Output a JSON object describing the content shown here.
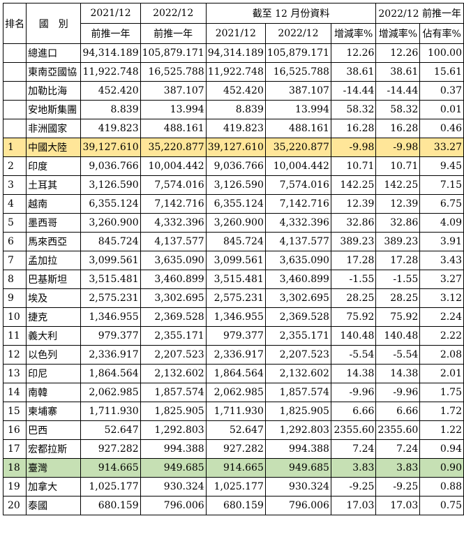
{
  "headers": {
    "rank": "排名",
    "country": "國　別",
    "group1": "截至 12 月份資料",
    "group2": "2022/12 前推一年",
    "c1_top": "2021/12",
    "c1_bottom": "前推一年",
    "c2_top": "2022/12",
    "c2_bottom": "前推一年",
    "c3": "2021/12",
    "c4": "2022/12",
    "c5": "增減率%",
    "c6": "增減率%",
    "c7": "佔有率%"
  },
  "rows": [
    {
      "rank": "",
      "country": "總進口",
      "v1": "94,314.189",
      "v2": "105,879.171",
      "v3": "94,314.189",
      "v4": "105,879.171",
      "v5": "12.26",
      "v6": "12.26",
      "v7": "100.00"
    },
    {
      "rank": "",
      "country": "東南亞國協",
      "v1": "11,922.748",
      "v2": "16,525.788",
      "v3": "11,922.748",
      "v4": "16,525.788",
      "v5": "38.61",
      "v6": "38.61",
      "v7": "15.61"
    },
    {
      "rank": "",
      "country": "加勒比海",
      "v1": "452.420",
      "v2": "387.107",
      "v3": "452.420",
      "v4": "387.107",
      "v5": "-14.44",
      "v6": "-14.44",
      "v7": "0.37"
    },
    {
      "rank": "",
      "country": "安地斯集團",
      "v1": "8.839",
      "v2": "13.994",
      "v3": "8.839",
      "v4": "13.994",
      "v5": "58.32",
      "v6": "58.32",
      "v7": "0.01"
    },
    {
      "rank": "",
      "country": "非洲國家",
      "v1": "419.823",
      "v2": "488.161",
      "v3": "419.823",
      "v4": "488.161",
      "v5": "16.28",
      "v6": "16.28",
      "v7": "0.46"
    },
    {
      "rank": "1",
      "country": "中國大陸",
      "v1": "39,127.610",
      "v2": "35,220.877",
      "v3": "39,127.610",
      "v4": "35,220.877",
      "v5": "-9.98",
      "v6": "-9.98",
      "v7": "33.27",
      "highlight": "yellow"
    },
    {
      "rank": "2",
      "country": "印度",
      "v1": "9,036.766",
      "v2": "10,004.442",
      "v3": "9,036.766",
      "v4": "10,004.442",
      "v5": "10.71",
      "v6": "10.71",
      "v7": "9.45"
    },
    {
      "rank": "3",
      "country": "土耳其",
      "v1": "3,126.590",
      "v2": "7,574.016",
      "v3": "3,126.590",
      "v4": "7,574.016",
      "v5": "142.25",
      "v6": "142.25",
      "v7": "7.15"
    },
    {
      "rank": "4",
      "country": "越南",
      "v1": "6,355.124",
      "v2": "7,142.716",
      "v3": "6,355.124",
      "v4": "7,142.716",
      "v5": "12.39",
      "v6": "12.39",
      "v7": "6.75"
    },
    {
      "rank": "5",
      "country": "墨西哥",
      "v1": "3,260.900",
      "v2": "4,332.396",
      "v3": "3,260.900",
      "v4": "4,332.396",
      "v5": "32.86",
      "v6": "32.86",
      "v7": "4.09"
    },
    {
      "rank": "6",
      "country": "馬來西亞",
      "v1": "845.724",
      "v2": "4,137.577",
      "v3": "845.724",
      "v4": "4,137.577",
      "v5": "389.23",
      "v6": "389.23",
      "v7": "3.91"
    },
    {
      "rank": "7",
      "country": "孟加拉",
      "v1": "3,099.561",
      "v2": "3,635.090",
      "v3": "3,099.561",
      "v4": "3,635.090",
      "v5": "17.28",
      "v6": "17.28",
      "v7": "3.43"
    },
    {
      "rank": "8",
      "country": "巴基斯坦",
      "v1": "3,515.481",
      "v2": "3,460.899",
      "v3": "3,515.481",
      "v4": "3,460.899",
      "v5": "-1.55",
      "v6": "-1.55",
      "v7": "3.27"
    },
    {
      "rank": "9",
      "country": "埃及",
      "v1": "2,575.231",
      "v2": "3,302.695",
      "v3": "2,575.231",
      "v4": "3,302.695",
      "v5": "28.25",
      "v6": "28.25",
      "v7": "3.12"
    },
    {
      "rank": "10",
      "country": "捷克",
      "v1": "1,346.955",
      "v2": "2,369.528",
      "v3": "1,346.955",
      "v4": "2,369.528",
      "v5": "75.92",
      "v6": "75.92",
      "v7": "2.24"
    },
    {
      "rank": "11",
      "country": "義大利",
      "v1": "979.377",
      "v2": "2,355.171",
      "v3": "979.377",
      "v4": "2,355.171",
      "v5": "140.48",
      "v6": "140.48",
      "v7": "2.22"
    },
    {
      "rank": "12",
      "country": "以色列",
      "v1": "2,336.917",
      "v2": "2,207.523",
      "v3": "2,336.917",
      "v4": "2,207.523",
      "v5": "-5.54",
      "v6": "-5.54",
      "v7": "2.08"
    },
    {
      "rank": "13",
      "country": "印尼",
      "v1": "1,864.564",
      "v2": "2,132.602",
      "v3": "1,864.564",
      "v4": "2,132.602",
      "v5": "14.38",
      "v6": "14.38",
      "v7": "2.01"
    },
    {
      "rank": "14",
      "country": "南韓",
      "v1": "2,062.985",
      "v2": "1,857.574",
      "v3": "2,062.985",
      "v4": "1,857.574",
      "v5": "-9.96",
      "v6": "-9.96",
      "v7": "1.75"
    },
    {
      "rank": "15",
      "country": "柬埔寨",
      "v1": "1,711.930",
      "v2": "1,825.905",
      "v3": "1,711.930",
      "v4": "1,825.905",
      "v5": "6.66",
      "v6": "6.66",
      "v7": "1.72"
    },
    {
      "rank": "16",
      "country": "巴西",
      "v1": "52.647",
      "v2": "1,292.803",
      "v3": "52.647",
      "v4": "1,292.803",
      "v5": "2355.60",
      "v6": "2355.60",
      "v7": "1.22"
    },
    {
      "rank": "17",
      "country": "宏都拉斯",
      "v1": "927.282",
      "v2": "994.388",
      "v3": "927.282",
      "v4": "994.388",
      "v5": "7.24",
      "v6": "7.24",
      "v7": "0.94"
    },
    {
      "rank": "18",
      "country": "臺灣",
      "v1": "914.665",
      "v2": "949.685",
      "v3": "914.665",
      "v4": "949.685",
      "v5": "3.83",
      "v6": "3.83",
      "v7": "0.90",
      "highlight": "green"
    },
    {
      "rank": "19",
      "country": "加拿大",
      "v1": "1,025.177",
      "v2": "930.324",
      "v3": "1,025.177",
      "v4": "930.324",
      "v5": "-9.25",
      "v6": "-9.25",
      "v7": "0.88"
    },
    {
      "rank": "20",
      "country": "泰國",
      "v1": "680.159",
      "v2": "796.006",
      "v3": "680.159",
      "v4": "796.006",
      "v5": "17.03",
      "v6": "17.03",
      "v7": "0.75"
    }
  ],
  "colors": {
    "highlight_yellow": "#ffe699",
    "highlight_green": "#c6e0b4"
  }
}
